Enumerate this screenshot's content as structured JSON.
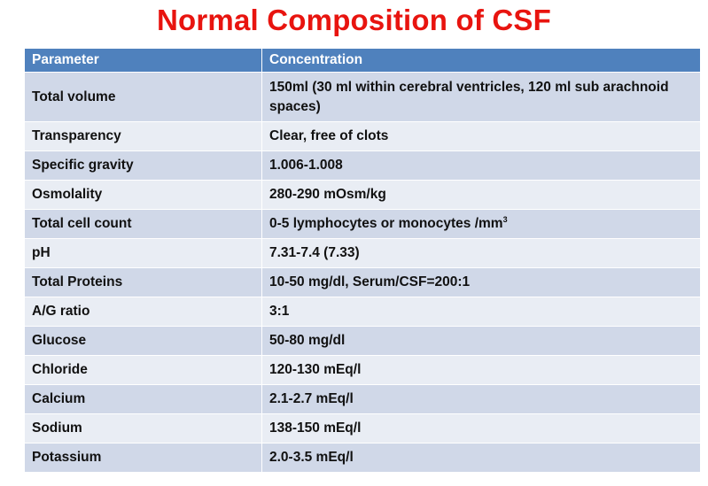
{
  "title": "Normal Composition of CSF",
  "colors": {
    "title": "#e8140f",
    "header_bg": "#4f81bd",
    "row_odd_bg": "#d0d8e8",
    "row_even_bg": "#e9edf4"
  },
  "table": {
    "headers": [
      "Parameter",
      "Concentration"
    ],
    "rows": [
      {
        "parameter": "Total volume",
        "concentration": "150ml (30 ml within  cerebral ventricles, 120 ml sub arachnoid spaces)"
      },
      {
        "parameter": "Transparency",
        "concentration": "Clear, free of clots"
      },
      {
        "parameter": "Specific gravity",
        "concentration": "1.006-1.008"
      },
      {
        "parameter": "Osmolality",
        "concentration": "280-290 mOsm/kg"
      },
      {
        "parameter": "Total cell count",
        "concentration": "0-5  lymphocytes or monocytes /mm",
        "concentration_sup": "3"
      },
      {
        "parameter": "pH",
        "concentration": "7.31-7.4 (7.33)"
      },
      {
        "parameter": "Total Proteins",
        "concentration": "10-50 mg/dl,  Serum/CSF=200:1"
      },
      {
        "parameter": "A/G ratio",
        "concentration": "3:1"
      },
      {
        "parameter": "Glucose",
        "concentration": "50-80 mg/dl"
      },
      {
        "parameter": "Chloride",
        "concentration": "120-130 mEq/l"
      },
      {
        "parameter": "Calcium",
        "concentration": "2.1-2.7 mEq/l"
      },
      {
        "parameter": "Sodium",
        "concentration": "138-150 mEq/l"
      },
      {
        "parameter": "Potassium",
        "concentration": "2.0-3.5 mEq/l"
      }
    ]
  }
}
